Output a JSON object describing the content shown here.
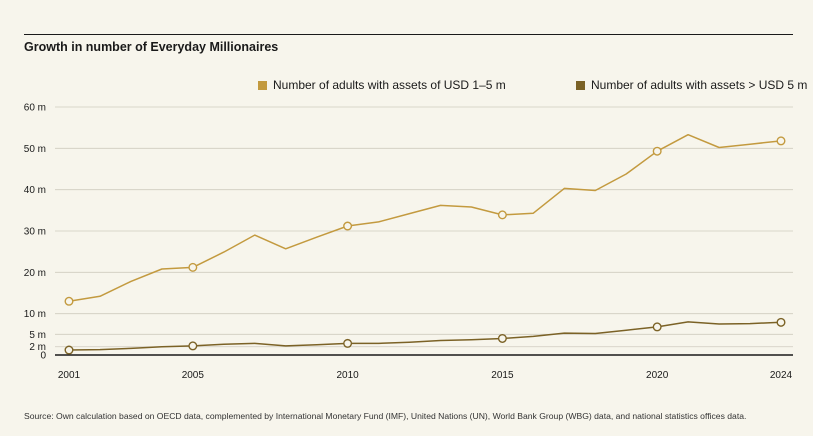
{
  "colors": {
    "series1": "#c39a3f",
    "series2": "#7b6226",
    "background": "#f7f5ec",
    "grid": "#cfcbbf",
    "axis": "#1a1a1a"
  },
  "chart_data": {
    "type": "line",
    "title": "Growth in number of Everyday Millionaires",
    "xlabel": "",
    "ylabel": "",
    "xlim": [
      2001,
      2024
    ],
    "ylim": [
      0,
      60
    ],
    "grid": true,
    "legend_position": "top-right",
    "x_ticks": [
      {
        "value": 2001,
        "label": "2001"
      },
      {
        "value": 2005,
        "label": "2005"
      },
      {
        "value": 2010,
        "label": "2010"
      },
      {
        "value": 2015,
        "label": "2015"
      },
      {
        "value": 2020,
        "label": "2020"
      },
      {
        "value": 2024,
        "label": "2024"
      }
    ],
    "y_ticks": [
      {
        "value": 0,
        "label": "0"
      },
      {
        "value": 2,
        "label": "2 m"
      },
      {
        "value": 5,
        "label": "5 m"
      },
      {
        "value": 10,
        "label": "10 m"
      },
      {
        "value": 20,
        "label": "20 m"
      },
      {
        "value": 30,
        "label": "30 m"
      },
      {
        "value": 40,
        "label": "40 m"
      },
      {
        "value": 50,
        "label": "50 m"
      },
      {
        "value": 60,
        "label": "60 m"
      }
    ],
    "x": [
      2001,
      2002,
      2003,
      2004,
      2005,
      2006,
      2007,
      2008,
      2009,
      2010,
      2011,
      2012,
      2013,
      2014,
      2015,
      2016,
      2017,
      2018,
      2019,
      2020,
      2021,
      2022,
      2023,
      2024
    ],
    "series": [
      {
        "name": "Number of adults with assets of USD 1–5 m",
        "color": "#c39a3f",
        "values": [
          13,
          14.2,
          17.8,
          20.8,
          21.2,
          24.9,
          29,
          25.7,
          28.5,
          31.2,
          32.2,
          34.2,
          36.2,
          35.8,
          33.9,
          34.3,
          40.3,
          39.8,
          43.8,
          49.3,
          53.3,
          50.2,
          51,
          51.8
        ],
        "markers": [
          2001,
          2005,
          2010,
          2015,
          2020,
          2024
        ]
      },
      {
        "name": "Number of adults with assets > USD 5 m",
        "color": "#7b6226",
        "values": [
          1.2,
          1.3,
          1.6,
          2,
          2.2,
          2.6,
          2.8,
          2.2,
          2.5,
          2.8,
          2.8,
          3.1,
          3.5,
          3.7,
          4,
          4.5,
          5.3,
          5.2,
          6,
          6.8,
          8,
          7.5,
          7.6,
          7.9
        ],
        "markers": [
          2001,
          2005,
          2010,
          2015,
          2020,
          2024
        ]
      }
    ]
  },
  "source": "Source: Own calculation based on OECD data, complemented by International Monetary Fund (IMF), United Nations (UN), World Bank Group (WBG) data, and national statistics offices data."
}
